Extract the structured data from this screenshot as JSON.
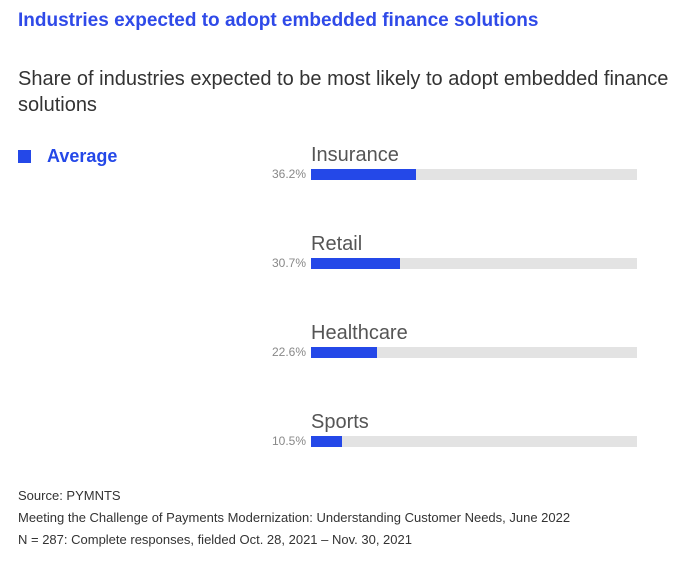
{
  "title": "Industries expected to adopt embedded finance solutions",
  "subtitle": "Share of industries expected to be most likely to adopt embedded finance solutions",
  "chart_data": {
    "type": "bar",
    "orientation": "horizontal",
    "categories": [
      "Insurance",
      "Retail",
      "Healthcare",
      "Sports"
    ],
    "series": [
      {
        "name": "Average",
        "values": [
          36.2,
          30.7,
          22.6,
          10.5
        ],
        "color": "#2448e8"
      }
    ],
    "value_labels": [
      "36.2%",
      "30.7%",
      "22.6%",
      "10.5%"
    ],
    "track_color": "#e3e3e3",
    "legend": "top-left"
  },
  "footer": {
    "source": "Source: PYMNTS",
    "report": "Meeting the Challenge of Payments Modernization: Understanding Customer Needs, June 2022",
    "note": "N = 287: Complete responses, fielded Oct. 28, 2021 – Nov. 30, 2021"
  }
}
